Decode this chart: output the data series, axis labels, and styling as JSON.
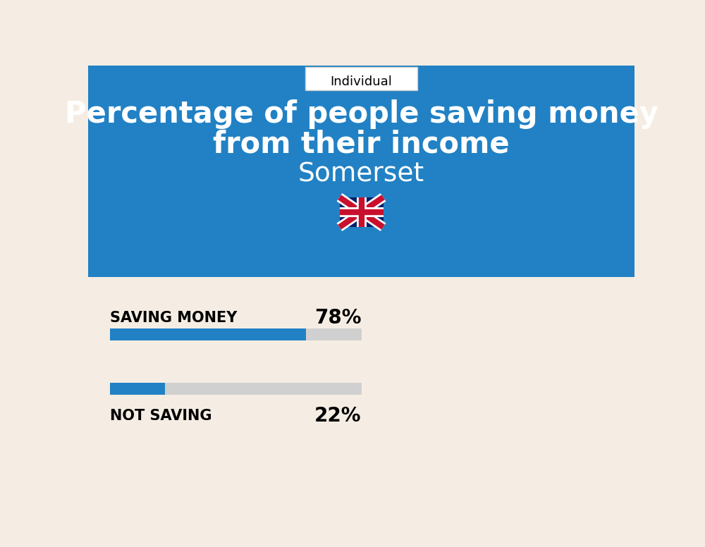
{
  "title_line1": "Percentage of people saving money",
  "title_line2": "from their income",
  "subtitle": "Somerset",
  "tab_label": "Individual",
  "bg_color": "#f5ede3",
  "header_color": "#2181c4",
  "bar_color": "#2181c4",
  "bar_bg_color": "#d0d0d0",
  "saving_label": "SAVING MONEY",
  "saving_value": 78,
  "saving_pct_label": "78%",
  "not_saving_label": "NOT SAVING",
  "not_saving_value": 22,
  "not_saving_pct_label": "22%",
  "title_fontsize": 30,
  "subtitle_fontsize": 27,
  "tab_fontsize": 13,
  "bar_label_fontsize": 15,
  "bar_pct_fontsize": 20,
  "tab_border_color": "#cccccc"
}
